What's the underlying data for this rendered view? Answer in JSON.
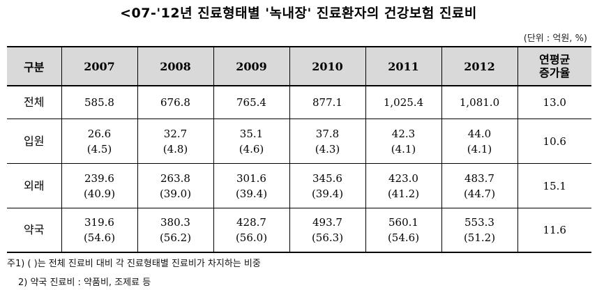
{
  "title": "<07-'12년 진료형태별 '녹내장' 진료환자의 건강보험 진료비",
  "unit": "(단위 : 억원, %)",
  "table": {
    "headers": [
      "구분",
      "2007",
      "2008",
      "2009",
      "2010",
      "2011",
      "2012"
    ],
    "rate_header": [
      "연평균",
      "증가율"
    ],
    "rows": [
      {
        "label": "전체",
        "values": [
          "585.8",
          "676.8",
          "765.4",
          "877.1",
          "1,025.4",
          "1,081.0"
        ],
        "shares": [],
        "rate": "13.0"
      },
      {
        "label": "입원",
        "values": [
          "26.6",
          "32.7",
          "35.1",
          "37.8",
          "42.3",
          "44.0"
        ],
        "shares": [
          "(4.5)",
          "(4.8)",
          "(4.6)",
          "(4.3)",
          "(4.1)",
          "(4.1)"
        ],
        "rate": "10.6"
      },
      {
        "label": "외래",
        "values": [
          "239.6",
          "263.8",
          "301.6",
          "345.6",
          "423.0",
          "483.7"
        ],
        "shares": [
          "(40.9)",
          "(39.0)",
          "(39.4)",
          "(39.4)",
          "(41.2)",
          "(44.7)"
        ],
        "rate": "15.1"
      },
      {
        "label": "약국",
        "values": [
          "319.6",
          "380.3",
          "428.7",
          "493.7",
          "560.1",
          "553.3"
        ],
        "shares": [
          "(54.6)",
          "(56.2)",
          "(56.0)",
          "(56.3)",
          "(54.6)",
          "(51.2)"
        ],
        "rate": "11.6"
      }
    ]
  },
  "notes": [
    "주1) ( )는 전체 진료비 대비 각 진료형태별 진료비가 차지하는 비중",
    "2) 약국 진료비 : 약품비, 조제료 등"
  ]
}
